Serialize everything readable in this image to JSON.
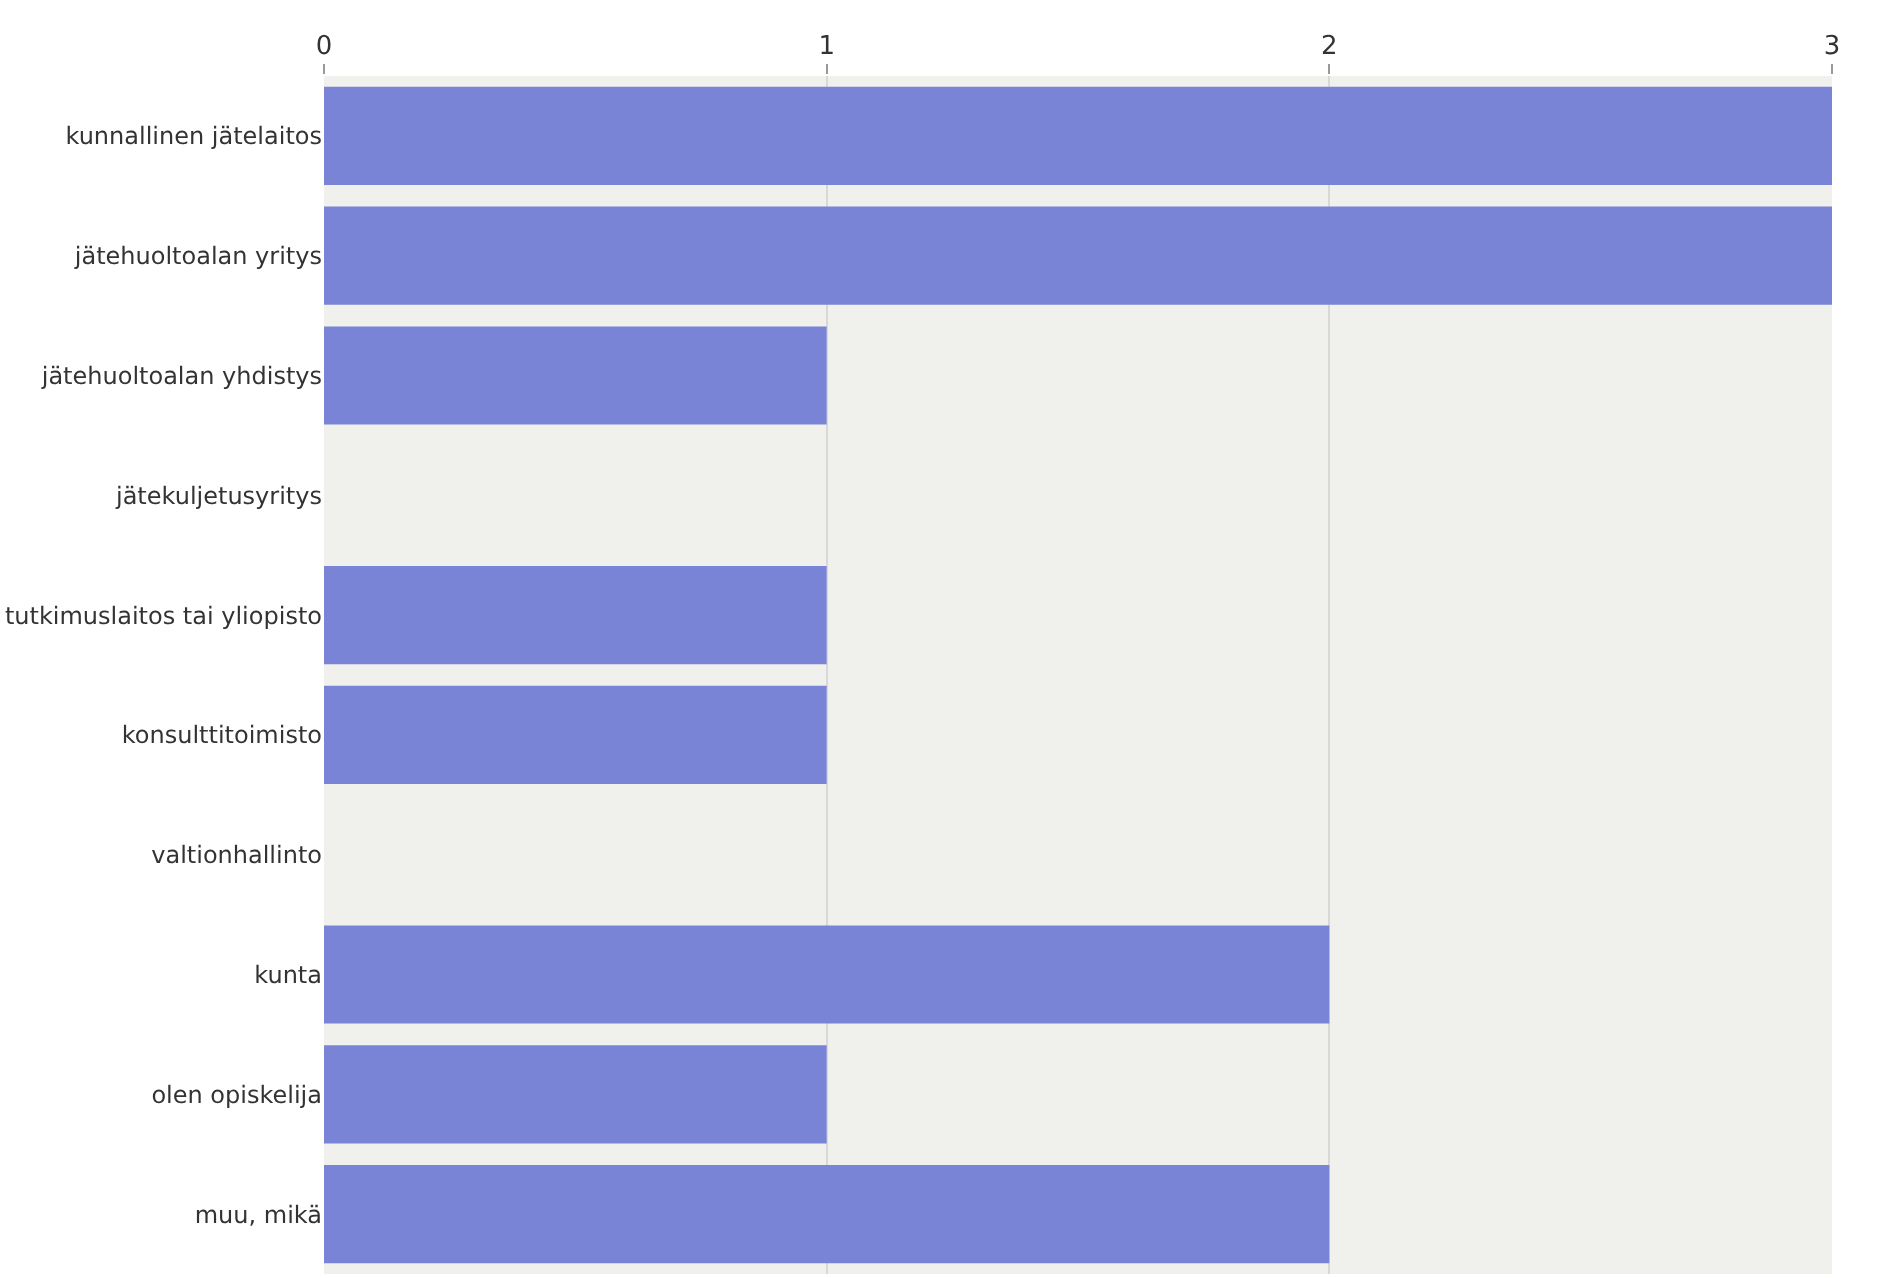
{
  "chart_data": {
    "type": "bar",
    "orientation": "horizontal",
    "categories": [
      "kunnallinen jätelaitos",
      "jätehuoltoalan yritys",
      "jätehuoltoalan yhdistys",
      "jätekuljetusyritys",
      "tutkimuslaitos tai yliopisto",
      "konsulttitoimisto",
      "valtionhallinto",
      "kunta",
      "olen opiskelija",
      "muu, mikä"
    ],
    "values": [
      3,
      3,
      1,
      0,
      1,
      1,
      0,
      2,
      1,
      2
    ],
    "color": "#7a84d6",
    "xlim": [
      0,
      3
    ],
    "xticks": [
      0,
      1,
      2,
      3
    ],
    "grid": "x",
    "legend": false
  }
}
